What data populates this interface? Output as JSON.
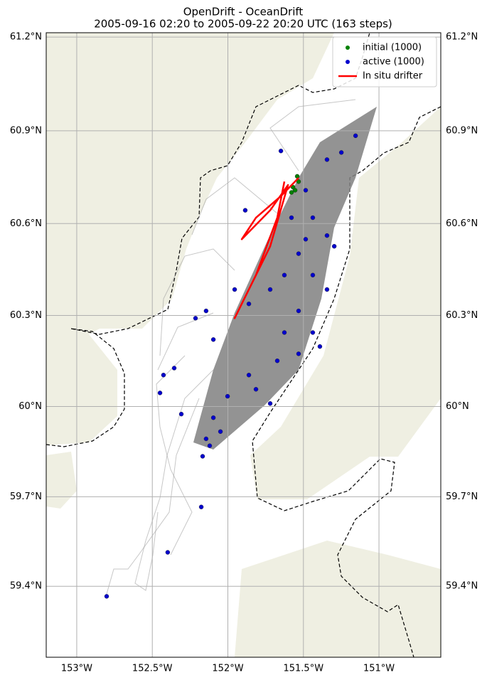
{
  "chart_data": {
    "type": "scatter",
    "title": "OpenDrift - OceanDrift",
    "subtitle": "2005-09-16 02:20 to 2005-09-22 20:20 UTC (163 steps)",
    "projection": "mercator",
    "grid": true,
    "legend": "upper right",
    "xlim": [
      -153.202,
      -150.591
    ],
    "ylim": [
      59.16,
      61.214
    ],
    "xticks": [
      {
        "value": -153,
        "label": "153°W"
      },
      {
        "value": -152.5,
        "label": "152.5°W"
      },
      {
        "value": -152,
        "label": "152°W"
      },
      {
        "value": -151.5,
        "label": "151.5°W"
      },
      {
        "value": -151,
        "label": "151°W"
      }
    ],
    "yticks": [
      {
        "value": 59.4,
        "label": "59.4°N"
      },
      {
        "value": 59.7,
        "label": "59.7°N"
      },
      {
        "value": 60,
        "label": "60°N"
      },
      {
        "value": 60.3,
        "label": "60.3°N"
      },
      {
        "value": 60.6,
        "label": "60.6°N"
      },
      {
        "value": 60.9,
        "label": "60.9°N"
      },
      {
        "value": 61.2,
        "label": "61.2°N"
      }
    ],
    "series": [
      {
        "name": "initial (1000)",
        "color": "#008000",
        "mode": "markers",
        "x": [
          -151.541,
          -151.569,
          -151.579,
          -151.532,
          -151.555
        ],
        "values": [
          60.753,
          60.718,
          60.701,
          60.736,
          60.708
        ]
      },
      {
        "name": "active (1000)",
        "color": "#0000cd",
        "mode": "markers",
        "x": [
          -151.155,
          -151.649,
          -151.344,
          -151.485,
          -151.885,
          -151.579,
          -151.344,
          -151.532,
          -151.438,
          -151.344,
          -151.72,
          -151.861,
          -151.532,
          -151.626,
          -151.438,
          -151.532,
          -151.673,
          -151.861,
          -151.814,
          -151.72,
          -152.002,
          -152.096,
          -152.049,
          -152.12,
          -152.167,
          -152.144,
          -152.426,
          -152.355,
          -152.449,
          -152.214,
          -152.144,
          -152.096,
          -152.308,
          -152.176,
          -152.398,
          -152.802,
          -151.296,
          -151.391,
          -151.955,
          -151.438,
          -151.249,
          -151.485,
          -151.626
        ],
        "values": [
          60.884,
          60.835,
          60.807,
          60.708,
          60.643,
          60.619,
          60.561,
          60.502,
          60.432,
          60.385,
          60.385,
          60.338,
          60.315,
          60.244,
          60.244,
          60.174,
          60.151,
          60.104,
          60.057,
          60.01,
          60.034,
          59.963,
          59.917,
          59.87,
          59.835,
          59.893,
          60.104,
          60.127,
          60.045,
          60.291,
          60.315,
          60.221,
          59.975,
          59.666,
          59.514,
          59.366,
          60.526,
          60.198,
          60.385,
          60.619,
          60.83,
          60.549,
          60.432
        ]
      },
      {
        "name": "In situ drifter",
        "color": "#ff0000",
        "mode": "line",
        "x": [
          -151.532,
          -151.649,
          -151.814,
          -151.908,
          -151.72,
          -151.602,
          -151.72,
          -151.861,
          -151.955,
          -151.814,
          -151.673,
          -151.626
        ],
        "values": [
          60.748,
          60.689,
          60.619,
          60.549,
          60.643,
          60.725,
          60.526,
          60.385,
          60.291,
          60.432,
          60.619,
          60.736
        ]
      }
    ]
  }
}
